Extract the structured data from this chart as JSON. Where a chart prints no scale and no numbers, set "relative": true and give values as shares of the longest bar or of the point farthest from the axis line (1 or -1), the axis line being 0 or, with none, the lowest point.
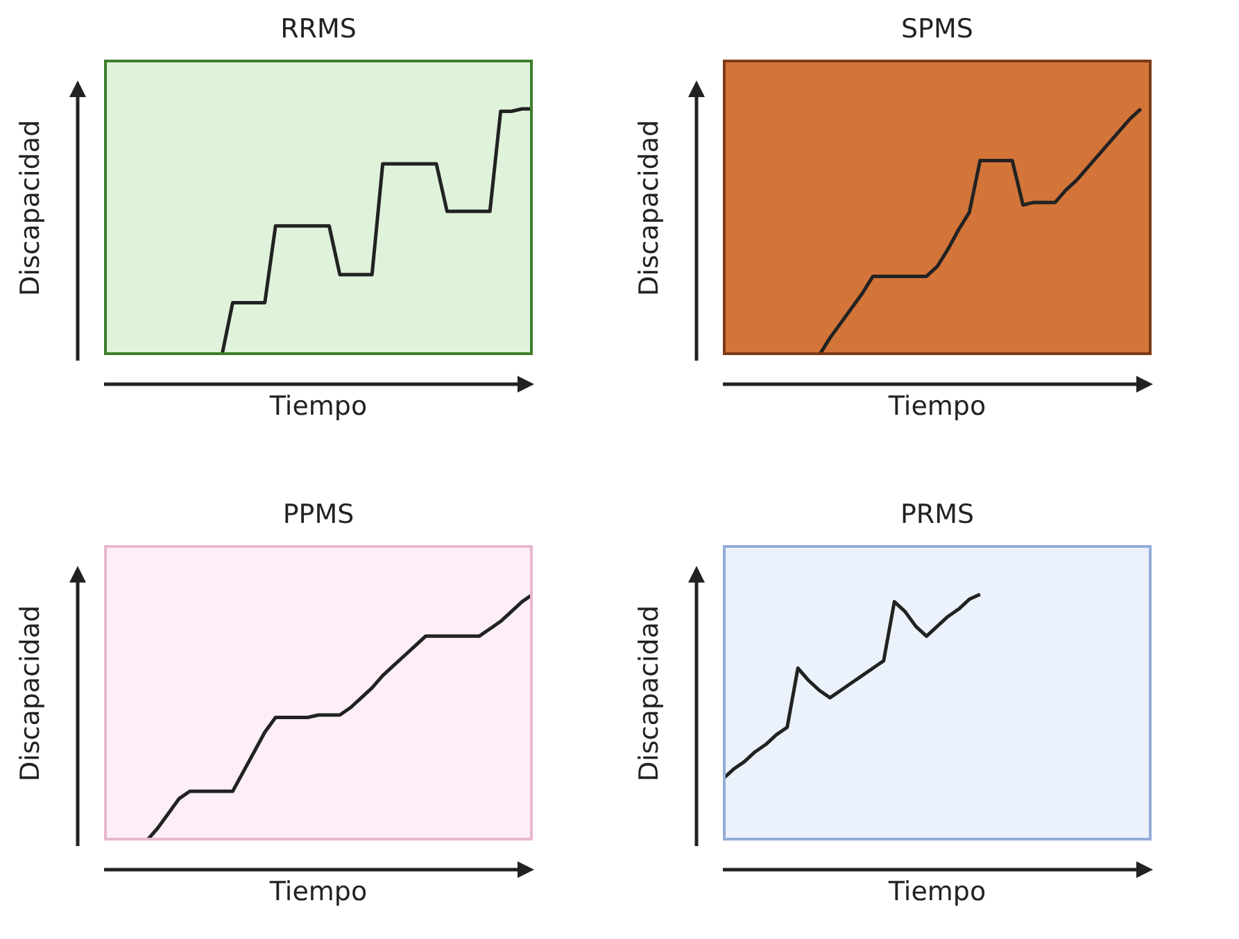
{
  "chart_data": [
    {
      "type": "line",
      "title": "RRMS",
      "xlabel": "Tiempo",
      "ylabel": "Discapacidad",
      "relative": true,
      "tick_labels": false,
      "color": "#222222",
      "categories": [
        null,
        null,
        null,
        null,
        null,
        null,
        null,
        null,
        null,
        null,
        null,
        null,
        null,
        null,
        null,
        null,
        null,
        null,
        null,
        null,
        null,
        null,
        null,
        null,
        null,
        null,
        null,
        null,
        null,
        null,
        null,
        null,
        null,
        null,
        null,
        null,
        null,
        null,
        null,
        null,
        null
      ],
      "values": [
        null,
        null,
        null,
        null,
        null,
        null,
        null,
        null,
        null,
        null,
        null,
        0,
        0.213,
        0.213,
        0.213,
        0.213,
        0.525,
        0.525,
        0.525,
        0.525,
        0.525,
        0.525,
        0.327,
        0.327,
        0.327,
        0.327,
        0.777,
        0.777,
        0.777,
        0.777,
        0.777,
        0.777,
        0.584,
        0.584,
        0.584,
        0.584,
        0.584,
        0.99,
        0.99,
        1,
        1
      ]
    },
    {
      "type": "line",
      "title": "SPMS",
      "xlabel": "Tiempo",
      "ylabel": "Discapacidad",
      "relative": true,
      "tick_labels": false,
      "color": "#222222",
      "categories": [
        null,
        null,
        null,
        null,
        null,
        null,
        null,
        null,
        null,
        null,
        null,
        null,
        null,
        null,
        null,
        null,
        null,
        null,
        null,
        null,
        null,
        null,
        null,
        null,
        null,
        null,
        null,
        null,
        null,
        null,
        null,
        null,
        null,
        null,
        null,
        null,
        null,
        null,
        null,
        null,
        null
      ],
      "values": [
        null,
        null,
        null,
        null,
        null,
        null,
        null,
        null,
        null,
        0,
        0.07,
        0.13,
        0.19,
        0.25,
        0.32,
        0.32,
        0.32,
        0.32,
        0.32,
        0.32,
        0.36,
        0.43,
        0.51,
        0.58,
        0.79,
        0.79,
        0.79,
        0.79,
        0.61,
        0.62,
        0.62,
        0.62,
        0.67,
        0.71,
        0.76,
        0.81,
        0.86,
        0.91,
        0.96,
        1,
        null
      ]
    },
    {
      "type": "line",
      "title": "PPMS",
      "xlabel": "Tiempo",
      "ylabel": "Discapacidad",
      "relative": true,
      "tick_labels": false,
      "color": "#222222",
      "categories": [
        null,
        null,
        null,
        null,
        null,
        null,
        null,
        null,
        null,
        null,
        null,
        null,
        null,
        null,
        null,
        null,
        null,
        null,
        null,
        null,
        null,
        null,
        null,
        null,
        null,
        null,
        null,
        null,
        null,
        null,
        null,
        null,
        null,
        null,
        null,
        null,
        null,
        null,
        null,
        null,
        null
      ],
      "values": [
        null,
        null,
        null,
        null,
        0,
        0.05,
        0.11,
        0.17,
        0.2,
        0.2,
        0.2,
        0.2,
        0.2,
        0.28,
        0.36,
        0.44,
        0.5,
        0.5,
        0.5,
        0.5,
        0.51,
        0.51,
        0.51,
        0.54,
        0.58,
        0.62,
        0.67,
        0.71,
        0.75,
        0.79,
        0.83,
        0.83,
        0.83,
        0.83,
        0.83,
        0.83,
        0.86,
        0.89,
        0.93,
        0.97,
        1
      ]
    },
    {
      "type": "line",
      "title": "PRMS",
      "xlabel": "Tiempo",
      "ylabel": "Discapacidad",
      "relative": true,
      "tick_labels": false,
      "color": "#222222",
      "categories": [
        null,
        null,
        null,
        null,
        null,
        null,
        null,
        null,
        null,
        null,
        null,
        null,
        null,
        null,
        null,
        null,
        null,
        null,
        null,
        null,
        null,
        null,
        null,
        null,
        null,
        null,
        null,
        null,
        null,
        null,
        null,
        null,
        null,
        null,
        null,
        null,
        null,
        null,
        null,
        null,
        null
      ],
      "values": [
        0.25,
        0.29,
        0.32,
        0.36,
        0.39,
        0.43,
        0.46,
        0.7,
        0.65,
        0.61,
        0.58,
        0.61,
        0.64,
        0.67,
        0.7,
        0.73,
        0.97,
        0.93,
        0.87,
        0.83,
        0.87,
        0.91,
        0.94,
        0.98,
        1,
        null,
        null,
        null,
        null,
        null,
        null,
        null,
        null,
        null,
        null,
        null,
        null,
        null,
        null,
        null,
        null
      ]
    }
  ]
}
